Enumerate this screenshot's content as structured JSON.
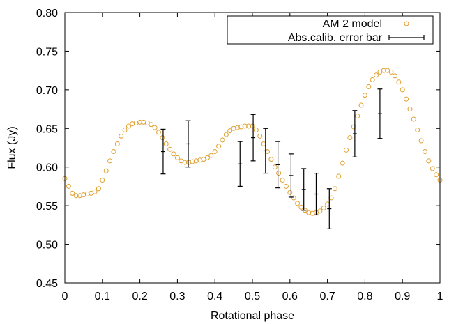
{
  "chart_data": {
    "type": "scatter",
    "xlabel": "Rotational phase",
    "ylabel": "Flux (Jy)",
    "xlim": [
      0,
      1
    ],
    "ylim": [
      0.45,
      0.8
    ],
    "x_ticks": [
      0,
      0.1,
      0.2,
      0.3,
      0.4,
      0.5,
      0.6,
      0.7,
      0.8,
      0.9,
      1
    ],
    "x_tick_labels": [
      "0",
      "0.1",
      "0.2",
      "0.3",
      "0.4",
      "0.5",
      "0.6",
      "0.7",
      "0.8",
      "0.9",
      "1"
    ],
    "y_ticks": [
      0.45,
      0.5,
      0.55,
      0.6,
      0.65,
      0.7,
      0.75,
      0.8
    ],
    "y_tick_labels": [
      "0.45",
      "0.50",
      "0.55",
      "0.60",
      "0.65",
      "0.70",
      "0.75",
      "0.80"
    ],
    "legend_position": "top-right",
    "grid": false,
    "series": [
      {
        "name": "AM 2 model",
        "marker": "open-circle",
        "color": "#e0a030",
        "x": [
          0.0,
          0.01,
          0.02,
          0.03,
          0.04,
          0.05,
          0.06,
          0.07,
          0.08,
          0.09,
          0.1,
          0.11,
          0.12,
          0.13,
          0.14,
          0.15,
          0.16,
          0.17,
          0.18,
          0.19,
          0.2,
          0.21,
          0.22,
          0.23,
          0.24,
          0.25,
          0.26,
          0.27,
          0.28,
          0.29,
          0.3,
          0.31,
          0.32,
          0.33,
          0.34,
          0.35,
          0.36,
          0.37,
          0.38,
          0.39,
          0.4,
          0.41,
          0.42,
          0.43,
          0.44,
          0.45,
          0.46,
          0.47,
          0.48,
          0.49,
          0.5,
          0.51,
          0.52,
          0.53,
          0.54,
          0.55,
          0.56,
          0.57,
          0.58,
          0.59,
          0.6,
          0.61,
          0.62,
          0.63,
          0.64,
          0.65,
          0.66,
          0.67,
          0.68,
          0.69,
          0.7,
          0.71,
          0.72,
          0.73,
          0.74,
          0.75,
          0.76,
          0.77,
          0.78,
          0.79,
          0.8,
          0.81,
          0.82,
          0.83,
          0.84,
          0.85,
          0.86,
          0.87,
          0.88,
          0.89,
          0.9,
          0.91,
          0.92,
          0.93,
          0.94,
          0.95,
          0.96,
          0.97,
          0.98,
          0.99,
          1.0
        ],
        "y": [
          0.585,
          0.575,
          0.566,
          0.563,
          0.563,
          0.564,
          0.565,
          0.566,
          0.568,
          0.572,
          0.583,
          0.595,
          0.608,
          0.62,
          0.63,
          0.64,
          0.648,
          0.653,
          0.656,
          0.657,
          0.658,
          0.658,
          0.657,
          0.655,
          0.651,
          0.645,
          0.638,
          0.63,
          0.623,
          0.617,
          0.612,
          0.608,
          0.606,
          0.606,
          0.607,
          0.608,
          0.609,
          0.61,
          0.612,
          0.615,
          0.62,
          0.627,
          0.635,
          0.642,
          0.647,
          0.65,
          0.651,
          0.652,
          0.653,
          0.653,
          0.653,
          0.648,
          0.64,
          0.63,
          0.62,
          0.61,
          0.6,
          0.592,
          0.583,
          0.575,
          0.567,
          0.56,
          0.553,
          0.548,
          0.544,
          0.541,
          0.54,
          0.541,
          0.543,
          0.547,
          0.552,
          0.56,
          0.572,
          0.588,
          0.605,
          0.622,
          0.638,
          0.652,
          0.666,
          0.68,
          0.693,
          0.704,
          0.713,
          0.719,
          0.723,
          0.725,
          0.725,
          0.723,
          0.718,
          0.71,
          0.7,
          0.688,
          0.675,
          0.662,
          0.648,
          0.634,
          0.62,
          0.608,
          0.598,
          0.59,
          0.583
        ]
      },
      {
        "name": "Abs.calib. error bar",
        "marker": "plus-errorbar",
        "color": "#000000",
        "x": [
          0.262,
          0.329,
          0.467,
          0.502,
          0.535,
          0.568,
          0.603,
          0.637,
          0.67,
          0.705,
          0.773,
          0.84
        ],
        "y": [
          0.62,
          0.63,
          0.604,
          0.638,
          0.621,
          0.603,
          0.589,
          0.571,
          0.565,
          0.546,
          0.643,
          0.669
        ],
        "yerr": [
          0.029,
          0.03,
          0.029,
          0.03,
          0.029,
          0.03,
          0.028,
          0.027,
          0.027,
          0.026,
          0.03,
          0.032
        ]
      }
    ]
  }
}
